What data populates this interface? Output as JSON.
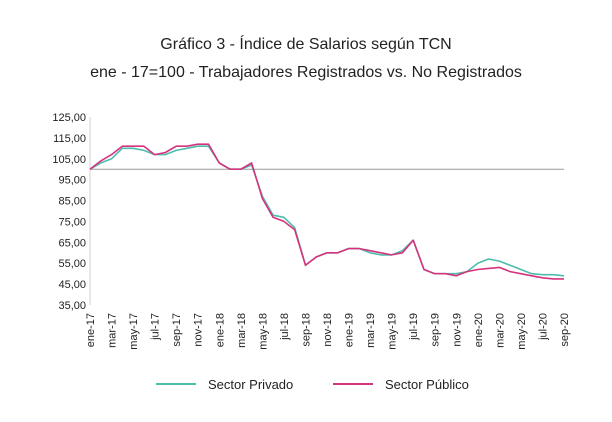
{
  "chart_data": {
    "type": "line",
    "title": "Gráfico 3 - Índice de Salarios según TCN",
    "subtitle": "ene - 17=100 - Trabajadores Registrados vs. No Registrados",
    "ylim": [
      35,
      125
    ],
    "y_ticks": [
      "125,00",
      "115,00",
      "105,00",
      "95,00",
      "85,00",
      "75,00",
      "65,00",
      "55,00",
      "45,00",
      "35,00"
    ],
    "y_tick_values": [
      125,
      115,
      105,
      95,
      85,
      75,
      65,
      55,
      45,
      35
    ],
    "reference_line": 100,
    "grid": false,
    "legend_position": "bottom",
    "x": [
      "ene-17",
      "feb-17",
      "mar-17",
      "abr-17",
      "may-17",
      "jun-17",
      "jul-17",
      "ago-17",
      "sep-17",
      "oct-17",
      "nov-17",
      "dic-17",
      "ene-18",
      "feb-18",
      "mar-18",
      "abr-18",
      "may-18",
      "jun-18",
      "jul-18",
      "ago-18",
      "sep-18",
      "oct-18",
      "nov-18",
      "dic-18",
      "ene-19",
      "feb-19",
      "mar-19",
      "abr-19",
      "may-19",
      "jun-19",
      "jul-19",
      "ago-19",
      "sep-19",
      "oct-19",
      "nov-19",
      "dic-19",
      "ene-20",
      "feb-20",
      "mar-20",
      "abr-20",
      "may-20",
      "jun-20",
      "jul-20",
      "ago-20",
      "sep-20"
    ],
    "x_tick_labels": [
      "ene-17",
      "mar-17",
      "may-17",
      "jul-17",
      "sep-17",
      "nov-17",
      "ene-18",
      "mar-18",
      "may-18",
      "jul-18",
      "sep-18",
      "nov-18",
      "ene-19",
      "mar-19",
      "may-19",
      "jul-19",
      "sep-19",
      "nov-19",
      "ene-20",
      "mar-20",
      "may-20",
      "jul-20",
      "sep-20"
    ],
    "series": [
      {
        "name": "Sector Privado",
        "color": "#4dbdac",
        "values": [
          100,
          103,
          105,
          110,
          110,
          109,
          107,
          107,
          109,
          110,
          111,
          111,
          103,
          100,
          100,
          102,
          87,
          78,
          77,
          72,
          54,
          58,
          60,
          60,
          62,
          62,
          60,
          59,
          59,
          61,
          66,
          52,
          50,
          50,
          50,
          51,
          55,
          57,
          56,
          54,
          52,
          50,
          49.5,
          49.5,
          49
        ]
      },
      {
        "name": "Sector Público",
        "color": "#d6337f",
        "values": [
          100,
          104,
          107,
          111,
          111,
          111,
          107,
          108,
          111,
          111,
          112,
          112,
          103,
          100,
          100,
          103,
          86,
          77,
          75,
          71,
          54,
          58,
          60,
          60,
          62,
          62,
          61,
          60,
          59,
          60,
          66,
          52,
          50,
          50,
          49,
          51,
          52,
          52.5,
          53,
          51,
          50,
          49,
          48,
          47.5,
          47.5
        ]
      }
    ]
  }
}
